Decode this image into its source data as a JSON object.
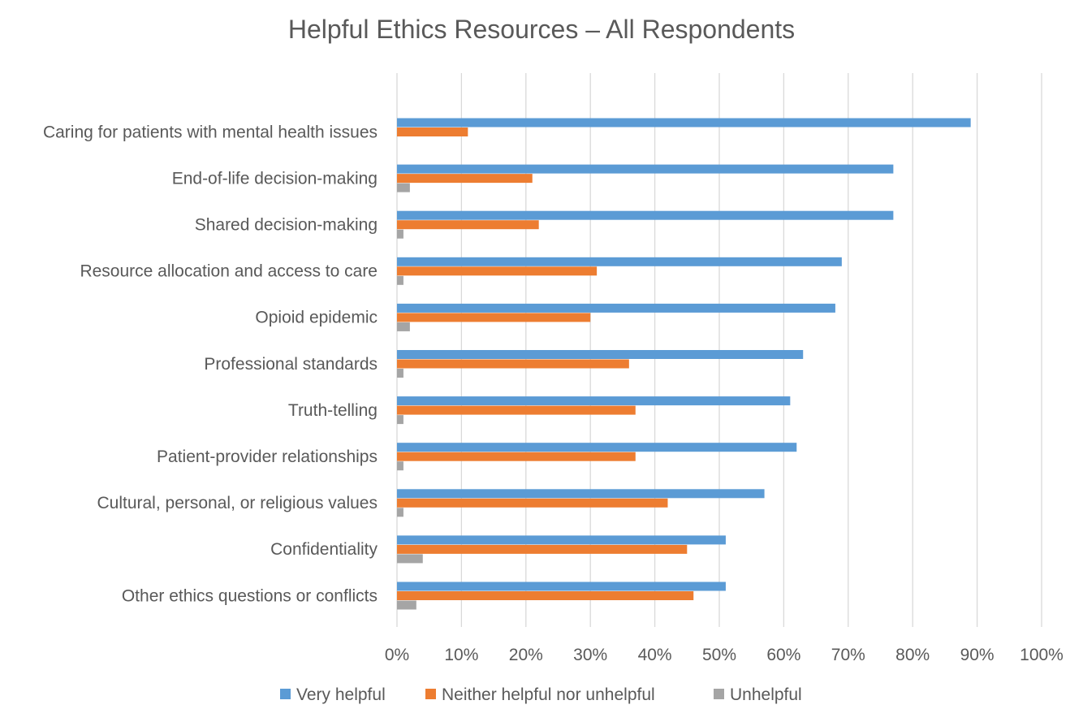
{
  "chart_data": {
    "type": "bar",
    "orientation": "horizontal",
    "title": "Helpful Ethics Resources – All Respondents",
    "categories": [
      "Caring for patients with mental health issues",
      "End-of-life decision-making",
      "Shared decision-making",
      "Resource allocation and access to care",
      "Opioid epidemic",
      "Professional standards",
      "Truth-telling",
      "Patient-provider relationships",
      "Cultural, personal, or religious values",
      "Confidentiality",
      "Other ethics questions or conflicts"
    ],
    "series": [
      {
        "name": "Very helpful",
        "color": "#5B9BD5",
        "values": [
          89,
          77,
          77,
          69,
          68,
          63,
          61,
          62,
          57,
          51,
          51
        ]
      },
      {
        "name": "Neither helpful nor unhelpful",
        "color": "#ED7D31",
        "values": [
          11,
          21,
          22,
          31,
          30,
          36,
          37,
          37,
          42,
          45,
          46
        ]
      },
      {
        "name": "Unhelpful",
        "color": "#A5A5A5",
        "values": [
          0,
          2,
          1,
          1,
          2,
          1,
          1,
          1,
          1,
          4,
          3
        ]
      }
    ],
    "xlim": [
      0,
      100
    ],
    "xticks": [
      "0%",
      "10%",
      "20%",
      "30%",
      "40%",
      "50%",
      "60%",
      "70%",
      "80%",
      "90%",
      "100%"
    ],
    "grid": "vertical",
    "legend": "bottom"
  }
}
